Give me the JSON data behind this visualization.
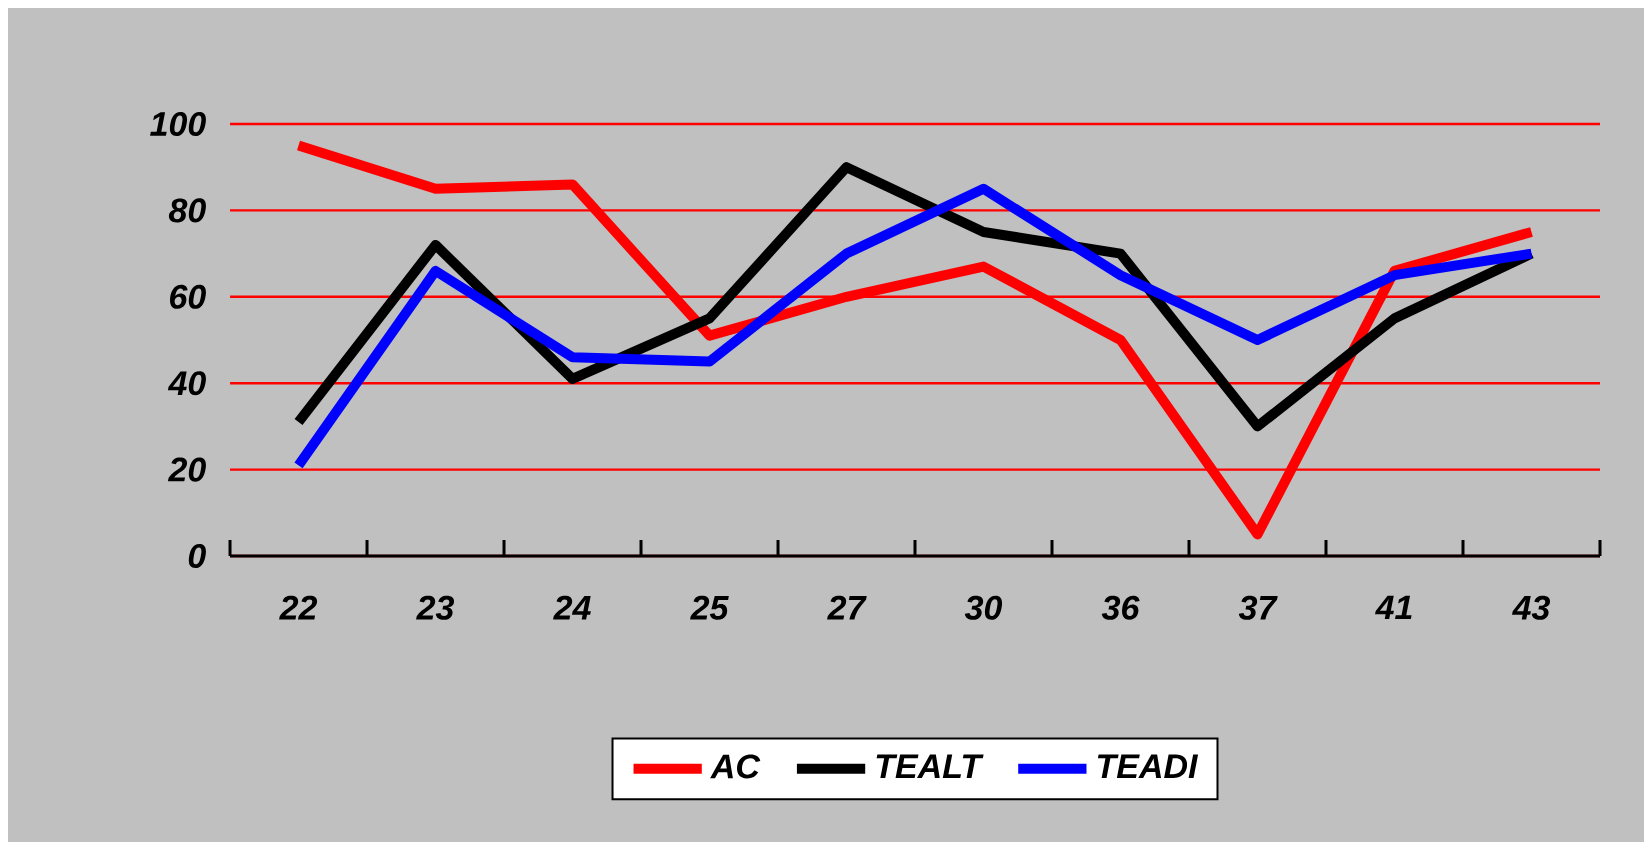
{
  "chart_data": {
    "type": "line",
    "categories": [
      "22",
      "23",
      "24",
      "25",
      "27",
      "30",
      "36",
      "37",
      "41",
      "43"
    ],
    "series": [
      {
        "name": "AC",
        "color": "#ff0000",
        "values": [
          95,
          85,
          86,
          51,
          60,
          67,
          50,
          5,
          66,
          75
        ]
      },
      {
        "name": "TEALT",
        "color": "#000000",
        "values": [
          31,
          72,
          41,
          55,
          90,
          75,
          70,
          30,
          55,
          70
        ]
      },
      {
        "name": "TEADI",
        "color": "#0000ff",
        "values": [
          21,
          66,
          46,
          45,
          70,
          85,
          65,
          50,
          65,
          70
        ]
      }
    ],
    "ylim": [
      0,
      100
    ],
    "yticks": [
      0,
      20,
      40,
      60,
      80,
      100
    ],
    "grid": "y",
    "legend": "bottom",
    "marker": "none",
    "line_style": "solid"
  }
}
